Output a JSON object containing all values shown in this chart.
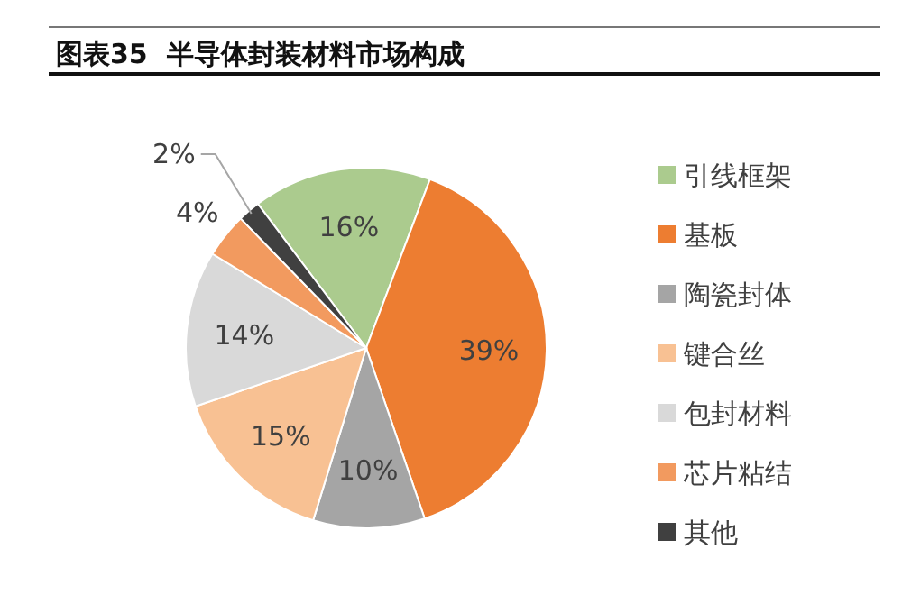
{
  "chart_data": {
    "type": "pie",
    "title": "图表35  半导体封装材料市场构成",
    "categories": [
      "引线框架",
      "基板",
      "陶瓷封体",
      "键合丝",
      "包封材料",
      "芯片粘结",
      "其他"
    ],
    "values": [
      16,
      39,
      10,
      15,
      14,
      4,
      2
    ],
    "colors": [
      "#abcb8e",
      "#ed7d31",
      "#a5a5a5",
      "#f8c193",
      "#d9d9d9",
      "#f29a5f",
      "#404040"
    ],
    "value_labels": [
      "16%",
      "39%",
      "10%",
      "15%",
      "14%",
      "4%",
      "2%"
    ],
    "legend": "right"
  }
}
